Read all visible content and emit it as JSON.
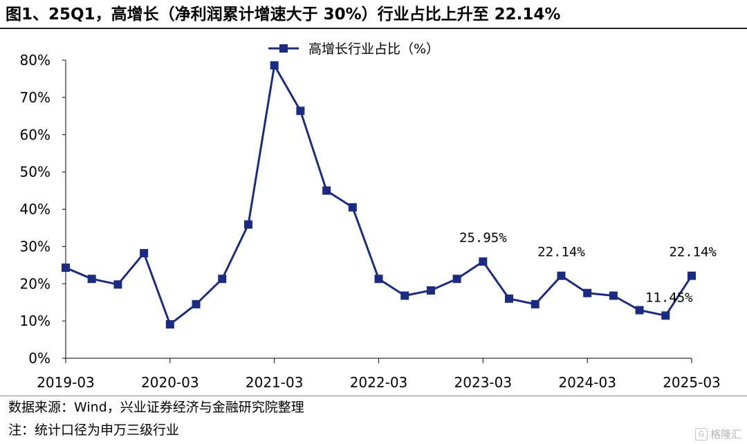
{
  "title": "图1、25Q1，高增长（净利润累计增速大于 30%）行业占比上升至 22.14%",
  "source_note": "数据来源：Wind，兴业证券经济与金融研究院整理",
  "extra_note": "注：统计口径为申万三级行业",
  "watermark": "格隆汇",
  "colors": {
    "series": "#1B2C80",
    "axis": "#000000"
  },
  "chart_data": {
    "type": "line",
    "legend": {
      "position": "top-center",
      "entries": [
        "高增长行业占比（%）"
      ]
    },
    "ylim": [
      0,
      80
    ],
    "yticks": [
      0,
      10,
      20,
      30,
      40,
      50,
      60,
      70,
      80
    ],
    "ytick_labels": [
      "0%",
      "10%",
      "20%",
      "30%",
      "40%",
      "50%",
      "60%",
      "70%",
      "80%"
    ],
    "xtick_labels": [
      "2019-03",
      "2020-03",
      "2021-03",
      "2022-03",
      "2023-03",
      "2024-03",
      "2025-03"
    ],
    "x": [
      "2019-03",
      "2019-06",
      "2019-09",
      "2019-12",
      "2020-03",
      "2020-06",
      "2020-09",
      "2020-12",
      "2021-03",
      "2021-06",
      "2021-09",
      "2021-12",
      "2022-03",
      "2022-06",
      "2022-09",
      "2022-12",
      "2023-03",
      "2023-06",
      "2023-09",
      "2023-12",
      "2024-03",
      "2024-06",
      "2024-09",
      "2024-12",
      "2025-03"
    ],
    "series": [
      {
        "name": "高增长行业占比（%）",
        "values": [
          24.3,
          21.3,
          19.8,
          28.2,
          9.1,
          14.5,
          21.3,
          35.9,
          78.6,
          66.4,
          45.0,
          40.5,
          21.3,
          16.8,
          18.2,
          21.3,
          25.95,
          16.0,
          14.5,
          22.14,
          17.5,
          16.8,
          12.9,
          11.45,
          22.14
        ]
      }
    ],
    "annotations": [
      {
        "index": 16,
        "text": "25.95%"
      },
      {
        "index": 19,
        "text": "22.14%"
      },
      {
        "index": 23,
        "text": "11.45%"
      },
      {
        "index": 24,
        "text": "22.14%"
      }
    ]
  }
}
